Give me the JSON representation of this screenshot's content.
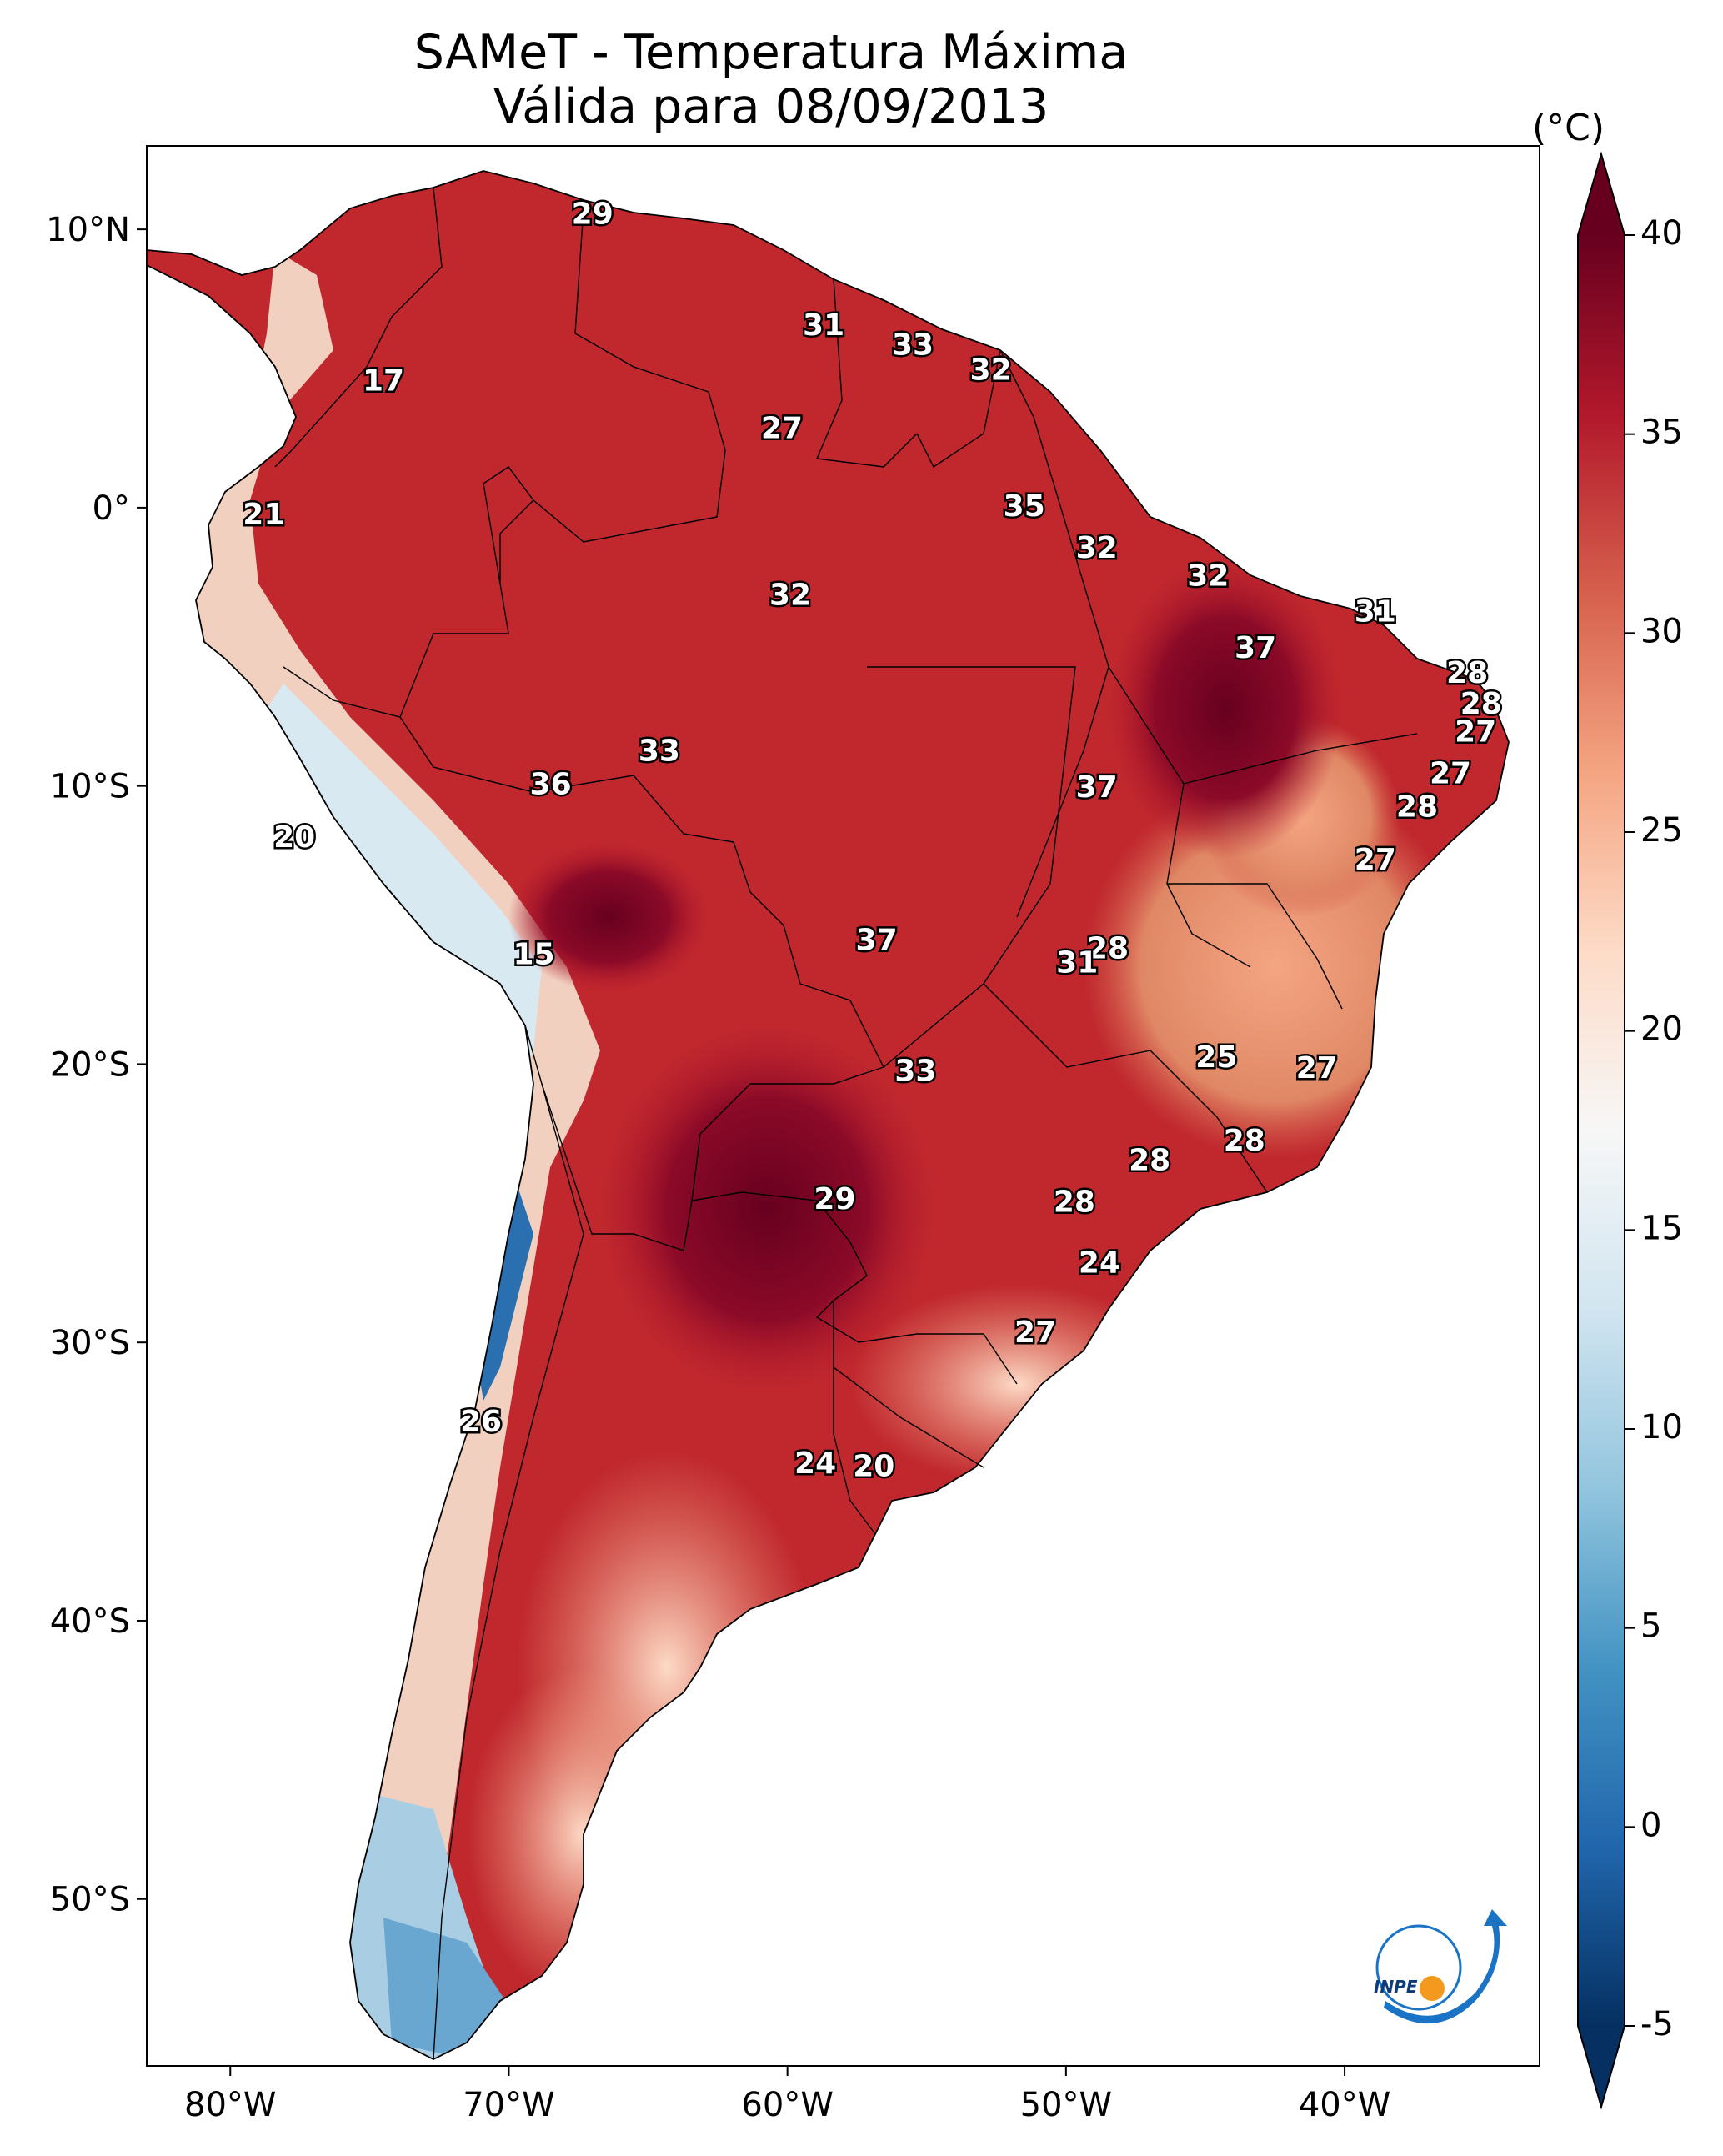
{
  "title": {
    "line1": "SAMeT - Temperatura Máxima",
    "line2": "Válida para 08/09/2013"
  },
  "map": {
    "lon_range": [
      -83,
      -33
    ],
    "lat_range": [
      -56,
      13
    ],
    "lon_ticks": [
      "80°W",
      "70°W",
      "60°W",
      "50°W",
      "40°W"
    ],
    "lat_ticks": [
      "10°N",
      "0°",
      "10°S",
      "20°S",
      "30°S",
      "40°S",
      "50°S"
    ],
    "background": "#ffffff",
    "border_color": "#000000"
  },
  "colorbar": {
    "unit": "(°C)",
    "range": [
      -5,
      40
    ],
    "ticks": [
      "40",
      "35",
      "30",
      "25",
      "20",
      "15",
      "10",
      "5",
      "0",
      "-5"
    ],
    "colors": [
      "#053061",
      "#2166ac",
      "#4393c3",
      "#92c5de",
      "#d1e5f0",
      "#f7f7f7",
      "#fddbc7",
      "#f4a582",
      "#d6604d",
      "#b2182b",
      "#67001f"
    ],
    "extend": "both"
  },
  "contour_labels": [
    {
      "text": "29",
      "lon": -67,
      "lat": 10.5
    },
    {
      "text": "17",
      "lon": -74.5,
      "lat": 4.5
    },
    {
      "text": "21",
      "lon": -78.8,
      "lat": -0.3
    },
    {
      "text": "31",
      "lon": -58.7,
      "lat": 6.5
    },
    {
      "text": "33",
      "lon": -55.5,
      "lat": 5.8
    },
    {
      "text": "32",
      "lon": -52.7,
      "lat": 4.9
    },
    {
      "text": "27",
      "lon": -60.2,
      "lat": 2.8
    },
    {
      "text": "35",
      "lon": -51.5,
      "lat": 0
    },
    {
      "text": "32",
      "lon": -48.9,
      "lat": -1.5
    },
    {
      "text": "32",
      "lon": -59.9,
      "lat": -3.2
    },
    {
      "text": "32",
      "lon": -44.9,
      "lat": -2.5
    },
    {
      "text": "31",
      "lon": -38.9,
      "lat": -3.8
    },
    {
      "text": "37",
      "lon": -43.2,
      "lat": -5.1
    },
    {
      "text": "28",
      "lon": -35.6,
      "lat": -6.0
    },
    {
      "text": "28",
      "lon": -35.1,
      "lat": -7.1
    },
    {
      "text": "27",
      "lon": -35.3,
      "lat": -8.1
    },
    {
      "text": "27",
      "lon": -36.2,
      "lat": -9.6
    },
    {
      "text": "28",
      "lon": -37.4,
      "lat": -10.8
    },
    {
      "text": "27",
      "lon": -38.9,
      "lat": -12.7
    },
    {
      "text": "33",
      "lon": -64.6,
      "lat": -8.8
    },
    {
      "text": "36",
      "lon": -68.5,
      "lat": -10.0
    },
    {
      "text": "37",
      "lon": -48.9,
      "lat": -10.1
    },
    {
      "text": "20",
      "lon": -77.7,
      "lat": -11.9
    },
    {
      "text": "15",
      "lon": -69.1,
      "lat": -16.1
    },
    {
      "text": "37",
      "lon": -56.8,
      "lat": -15.6
    },
    {
      "text": "28",
      "lon": -48.5,
      "lat": -15.9
    },
    {
      "text": "31",
      "lon": -49.6,
      "lat": -16.4
    },
    {
      "text": "25",
      "lon": -44.6,
      "lat": -19.8
    },
    {
      "text": "27",
      "lon": -41.0,
      "lat": -20.2
    },
    {
      "text": "33",
      "lon": -55.4,
      "lat": -20.3
    },
    {
      "text": "28",
      "lon": -43.6,
      "lat": -22.8
    },
    {
      "text": "28",
      "lon": -47.0,
      "lat": -23.5
    },
    {
      "text": "29",
      "lon": -58.3,
      "lat": -24.9
    },
    {
      "text": "28",
      "lon": -49.7,
      "lat": -25.0
    },
    {
      "text": "24",
      "lon": -48.8,
      "lat": -27.2
    },
    {
      "text": "27",
      "lon": -51.1,
      "lat": -29.7
    },
    {
      "text": "26",
      "lon": -71.0,
      "lat": -32.9
    },
    {
      "text": "24",
      "lon": -59.0,
      "lat": -34.4
    },
    {
      "text": "20",
      "lon": -56.9,
      "lat": -34.5
    }
  ]
}
